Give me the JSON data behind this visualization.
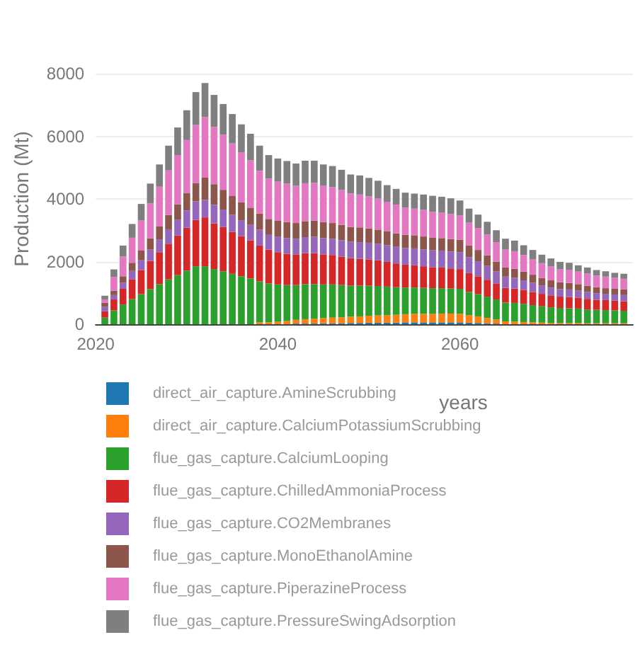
{
  "chart_data": {
    "type": "bar",
    "stacked": true,
    "xlabel": "years",
    "ylabel": "Production (Mt)",
    "x": [
      2021,
      2022,
      2023,
      2024,
      2025,
      2026,
      2027,
      2028,
      2029,
      2030,
      2031,
      2032,
      2033,
      2034,
      2035,
      2036,
      2037,
      2038,
      2039,
      2040,
      2041,
      2042,
      2043,
      2044,
      2045,
      2046,
      2047,
      2048,
      2049,
      2050,
      2051,
      2052,
      2053,
      2054,
      2055,
      2056,
      2057,
      2058,
      2059,
      2060,
      2061,
      2062,
      2063,
      2064,
      2065,
      2066,
      2067,
      2068,
      2069,
      2070,
      2071,
      2072,
      2073,
      2074,
      2075,
      2076,
      2077,
      2078
    ],
    "series": [
      {
        "name": "direct_air_capture.AmineScrubbing",
        "color": "#1f77b4",
        "values": [
          0,
          0,
          0,
          0,
          0,
          0,
          0,
          0,
          0,
          0,
          0,
          0,
          0,
          0,
          0,
          0,
          0,
          0,
          0,
          0,
          null,
          20,
          20,
          20,
          30,
          30,
          30,
          40,
          40,
          50,
          50,
          50,
          50,
          60,
          60,
          60,
          60,
          60,
          60,
          60,
          50,
          40,
          30,
          20,
          null,
          0,
          0,
          0,
          0,
          0,
          0,
          0,
          0,
          0,
          0,
          0,
          0,
          0
        ]
      },
      {
        "name": "direct_air_capture.CalciumPotassiumScrubbing",
        "color": "#ff7f0e",
        "values": [
          0,
          0,
          0,
          0,
          0,
          0,
          0,
          0,
          0,
          0,
          0,
          0,
          0,
          0,
          0,
          0,
          0,
          60,
          60,
          80,
          100,
          120,
          140,
          160,
          170,
          180,
          190,
          200,
          210,
          220,
          230,
          240,
          250,
          260,
          270,
          270,
          270,
          280,
          280,
          270,
          240,
          210,
          170,
          130,
          90,
          80,
          70,
          60,
          50,
          40,
          40,
          40,
          40,
          30,
          30,
          30,
          30,
          30
        ]
      },
      {
        "name": "flue_gas_capture.CalciumLooping",
        "color": "#2ca02c",
        "values": [
          210,
          440,
          630,
          800,
          960,
          1120,
          1280,
          1430,
          1570,
          1710,
          1850,
          1850,
          1760,
          1690,
          1610,
          1530,
          1460,
          1310,
          1240,
          1190,
          1150,
          1110,
          1120,
          1100,
          1070,
          1060,
          1030,
          990,
          980,
          960,
          940,
          910,
          880,
          850,
          840,
          830,
          820,
          810,
          800,
          800,
          740,
          710,
          680,
          640,
          600,
          600,
          580,
          550,
          520,
          500,
          480,
          470,
          460,
          440,
          430,
          420,
          410,
          400
        ]
      },
      {
        "name": "flue_gas_capture.ChilledAmmoniaProcess",
        "color": "#d62728",
        "values": [
          200,
          350,
          500,
          640,
          770,
          900,
          1020,
          1140,
          1260,
          1370,
          1480,
          1560,
          1460,
          1410,
          1340,
          1280,
          1220,
          1140,
          1080,
          1030,
          1000,
          980,
          990,
          990,
          960,
          940,
          910,
          880,
          860,
          840,
          820,
          790,
          760,
          730,
          710,
          690,
          670,
          660,
          640,
          630,
          600,
          570,
          540,
          500,
          470,
          460,
          440,
          420,
          400,
          380,
          360,
          360,
          350,
          340,
          320,
          320,
          310,
          300
        ]
      },
      {
        "name": "flue_gas_capture.CO2Membranes",
        "color": "#9467bd",
        "values": [
          150,
          140,
          200,
          260,
          310,
          360,
          410,
          460,
          500,
          550,
          590,
          560,
          590,
          560,
          540,
          510,
          490,
          510,
          490,
          500,
          500,
          500,
          510,
          520,
          520,
          520,
          520,
          520,
          530,
          530,
          530,
          530,
          530,
          530,
          540,
          540,
          540,
          540,
          540,
          540,
          510,
          480,
          440,
          400,
          360,
          340,
          310,
          290,
          270,
          250,
          240,
          240,
          220,
          220,
          210,
          200,
          200,
          200
        ]
      },
      {
        "name": "flue_gas_capture.MonoEthanolAmine",
        "color": "#8c564b",
        "values": [
          120,
          140,
          200,
          260,
          310,
          360,
          410,
          460,
          500,
          550,
          590,
          710,
          660,
          630,
          600,
          570,
          550,
          510,
          490,
          500,
          510,
          500,
          510,
          520,
          510,
          500,
          490,
          470,
          470,
          460,
          450,
          440,
          430,
          420,
          420,
          410,
          410,
          400,
          400,
          400,
          370,
          360,
          340,
          310,
          290,
          290,
          280,
          260,
          240,
          230,
          220,
          210,
          210,
          200,
          190,
          180,
          180,
          180
        ]
      },
      {
        "name": "flue_gas_capture.PiperazineProcess",
        "color": "#e377c2",
        "values": [
          110,
          440,
          630,
          800,
          960,
          1120,
          1270,
          1420,
          1570,
          1700,
          1850,
          1930,
          1830,
          1760,
          1680,
          1600,
          1510,
          1370,
          1290,
          1250,
          1230,
          1190,
          1210,
          1200,
          1170,
          1150,
          1120,
          1070,
          1050,
          1020,
          990,
          950,
          920,
          870,
          850,
          850,
          820,
          810,
          800,
          770,
          730,
          700,
          660,
          620,
          570,
          560,
          530,
          500,
          470,
          450,
          420,
          420,
          400,
          390,
          370,
          370,
          350,
          340
        ]
      },
      {
        "name": "flue_gas_capture.PressureSwingAdsorption",
        "color": "#7f7f7f",
        "values": [
          120,
          240,
          350,
          440,
          530,
          630,
          710,
          790,
          880,
          950,
          1050,
          1090,
          1020,
          980,
          940,
          890,
          850,
          800,
          750,
          740,
          720,
          710,
          720,
          710,
          670,
          670,
          640,
          610,
          610,
          590,
          570,
          530,
          500,
          480,
          480,
          490,
          510,
          510,
          500,
          480,
          450,
          430,
          410,
          380,
          350,
          340,
          310,
          290,
          270,
          250,
          230,
          220,
          200,
          190,
          180,
          170,
          160,
          160
        ]
      }
    ],
    "xlim": [
      2020,
      2079
    ],
    "xticks": [
      2020,
      2040,
      2060
    ],
    "ylim": [
      0,
      8000
    ],
    "yticks": [
      0,
      2000,
      4000,
      6000,
      8000
    ],
    "grid": "y",
    "legend": "bottom"
  }
}
